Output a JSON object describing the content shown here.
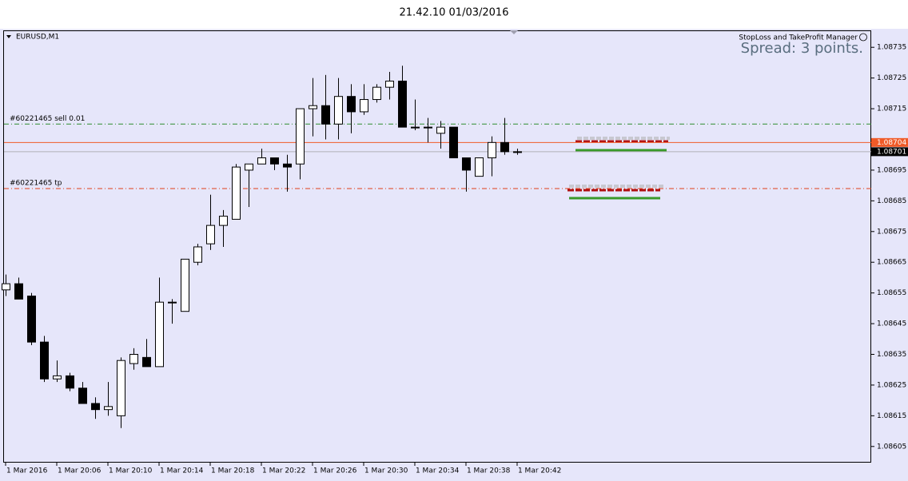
{
  "chart_data": {
    "type": "candlestick",
    "title": "21.42.10 01/03/2016",
    "symbol": "EURUSD,M1",
    "indicator_title": "StopLoss and TakeProfit Manager",
    "spread_text": "Spread: 3 points.",
    "open": [
      1.08656,
      1.08658,
      1.08654,
      1.08639,
      1.08627,
      1.08628,
      1.08624,
      1.08619,
      1.08617,
      1.08615,
      1.08632,
      1.08634,
      1.08631,
      1.08652,
      1.08649,
      1.08665,
      1.08671,
      1.08677,
      1.08679,
      1.08695,
      1.08697,
      1.08699,
      1.08697,
      1.08697,
      1.08715,
      1.08716,
      1.0871,
      1.08719,
      1.08714,
      1.08718,
      1.08722,
      1.08724,
      1.08709,
      1.08709,
      1.08707,
      1.08709,
      1.08699,
      1.08693,
      1.08699,
      1.08704,
      1.08701
    ],
    "high": [
      1.08661,
      1.0866,
      1.08655,
      1.08641,
      1.08633,
      1.08629,
      1.08626,
      1.08621,
      1.08626,
      1.08634,
      1.08637,
      1.0864,
      1.0866,
      1.08653,
      1.08666,
      1.08671,
      1.08687,
      1.08682,
      1.08697,
      1.08697,
      1.08702,
      1.08699,
      1.087,
      1.08715,
      1.08725,
      1.08726,
      1.08725,
      1.08723,
      1.08723,
      1.08723,
      1.08727,
      1.08729,
      1.08718,
      1.08712,
      1.08711,
      1.08709,
      1.08699,
      1.08699,
      1.08706,
      1.08712,
      1.08702
    ],
    "low": [
      1.08654,
      1.08653,
      1.08638,
      1.08626,
      1.08626,
      1.08623,
      1.08619,
      1.08614,
      1.08615,
      1.08611,
      1.0863,
      1.08631,
      1.08631,
      1.08645,
      1.08649,
      1.08664,
      1.08669,
      1.0867,
      1.08679,
      1.08683,
      1.08697,
      1.08695,
      1.08688,
      1.08692,
      1.08706,
      1.08705,
      1.08705,
      1.08707,
      1.08713,
      1.08717,
      1.08718,
      1.08709,
      1.08708,
      1.08704,
      1.08702,
      1.08699,
      1.08688,
      1.08693,
      1.08693,
      1.087,
      1.087
    ],
    "close": [
      1.08658,
      1.08653,
      1.08639,
      1.08627,
      1.08628,
      1.08624,
      1.08619,
      1.08617,
      1.08618,
      1.08633,
      1.08635,
      1.08631,
      1.08652,
      1.08652,
      1.08666,
      1.0867,
      1.08677,
      1.0868,
      1.08696,
      1.08697,
      1.08699,
      1.08697,
      1.08696,
      1.08715,
      1.08716,
      1.0871,
      1.08719,
      1.08714,
      1.08718,
      1.08722,
      1.08724,
      1.08709,
      1.08709,
      1.08709,
      1.08709,
      1.08699,
      1.08695,
      1.08699,
      1.08704,
      1.08701,
      1.08701
    ],
    "up_color": "#ffffff",
    "down_color": "#000000",
    "xlim": [
      -0.125,
      67.69
    ],
    "xticks": [
      {
        "value": 0,
        "label": "1 Mar 2016"
      },
      {
        "value": 4,
        "label": "1 Mar 20:06"
      },
      {
        "value": 8,
        "label": "1 Mar 20:10"
      },
      {
        "value": 12,
        "label": "1 Mar 20:14"
      },
      {
        "value": 16,
        "label": "1 Mar 20:18"
      },
      {
        "value": 20,
        "label": "1 Mar 20:22"
      },
      {
        "value": 24,
        "label": "1 Mar 20:26"
      },
      {
        "value": 28,
        "label": "1 Mar 20:30"
      },
      {
        "value": 32,
        "label": "1 Mar 20:34"
      },
      {
        "value": 36,
        "label": "1 Mar 20:38"
      },
      {
        "value": 40,
        "label": "1 Mar 20:42"
      }
    ],
    "ylim": [
      1.086,
      1.0874
    ],
    "yticks": [
      1.08735,
      1.08725,
      1.08715,
      1.08695,
      1.08685,
      1.08675,
      1.08665,
      1.08655,
      1.08645,
      1.08635,
      1.08625,
      1.08615,
      1.08605
    ],
    "order_lines": [
      {
        "label": "#60221465 sell 0.01",
        "value": 1.0871,
        "color": "#2e8b2e"
      },
      {
        "label": "#60221465 tp",
        "value": 1.08689,
        "color": "#e0401a"
      }
    ],
    "price_marks": [
      {
        "value": 1.08704,
        "color": "#f05a28"
      },
      {
        "value": 1.08701,
        "color": "#000000"
      }
    ]
  }
}
